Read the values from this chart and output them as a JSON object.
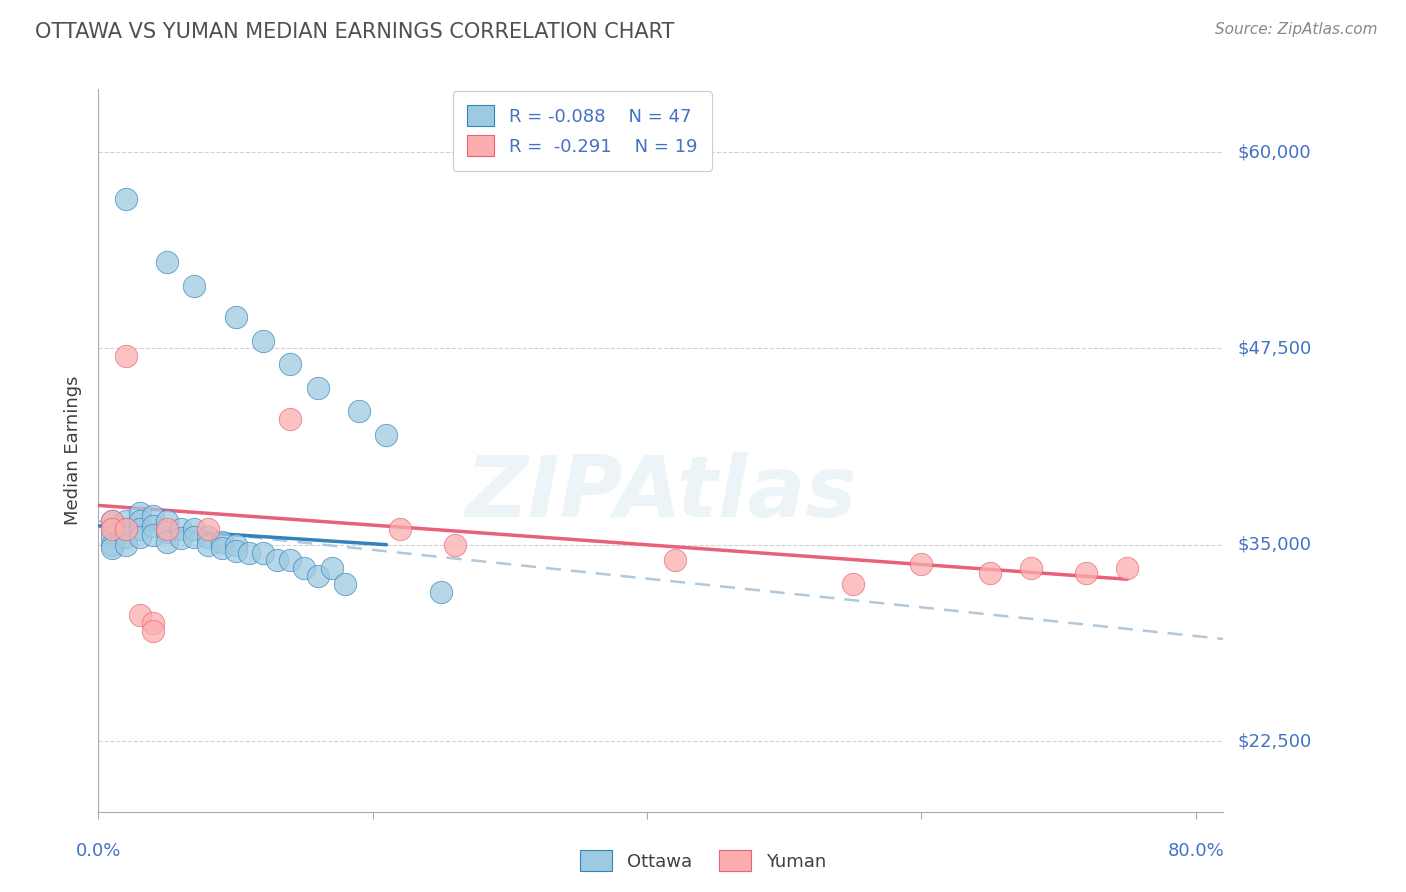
{
  "title": "OTTAWA VS YUMAN MEDIAN EARNINGS CORRELATION CHART",
  "source": "Source: ZipAtlas.com",
  "ylabel": "Median Earnings",
  "yticks": [
    22500,
    35000,
    47500,
    60000
  ],
  "ytick_labels": [
    "$22,500",
    "$35,000",
    "$47,500",
    "$60,000"
  ],
  "ylim": [
    18000,
    64000
  ],
  "xlim": [
    0.0,
    0.82
  ],
  "watermark": "ZIPAtlas",
  "ottawa_color": "#9ecae1",
  "yuman_color": "#fcaeae",
  "ottawa_line_color": "#3182bd",
  "yuman_line_color": "#e8607a",
  "dashed_color": "#b0c8dc",
  "background_color": "#ffffff",
  "grid_color": "#cccccc",
  "title_color": "#505050",
  "axis_label_color": "#4472c4",
  "ottawa_x": [
    0.01,
    0.01,
    0.01,
    0.01,
    0.01,
    0.02,
    0.02,
    0.02,
    0.02,
    0.03,
    0.03,
    0.03,
    0.03,
    0.04,
    0.04,
    0.04,
    0.05,
    0.05,
    0.05,
    0.06,
    0.06,
    0.07,
    0.07,
    0.08,
    0.08,
    0.09,
    0.09,
    0.1,
    0.1,
    0.11,
    0.12,
    0.13,
    0.14,
    0.15,
    0.16,
    0.17,
    0.18,
    0.02,
    0.05,
    0.07,
    0.1,
    0.12,
    0.14,
    0.16,
    0.19,
    0.21,
    0.25
  ],
  "ottawa_y": [
    36500,
    36000,
    35500,
    35000,
    34800,
    36500,
    36000,
    35500,
    35000,
    37000,
    36500,
    36000,
    35500,
    36800,
    36200,
    35600,
    36500,
    35800,
    35200,
    36000,
    35400,
    36000,
    35500,
    35500,
    35000,
    35200,
    34800,
    35000,
    34600,
    34500,
    34500,
    34000,
    34000,
    33500,
    33000,
    33500,
    32500,
    57000,
    53000,
    51500,
    49500,
    48000,
    46500,
    45000,
    43500,
    42000,
    32000
  ],
  "yuman_x": [
    0.01,
    0.01,
    0.02,
    0.02,
    0.03,
    0.04,
    0.04,
    0.05,
    0.08,
    0.14,
    0.22,
    0.26,
    0.42,
    0.55,
    0.6,
    0.65,
    0.68,
    0.72,
    0.75
  ],
  "yuman_y": [
    36500,
    36000,
    47000,
    36000,
    30500,
    30000,
    29500,
    36000,
    36000,
    43000,
    36000,
    35000,
    34000,
    32500,
    33800,
    33200,
    33500,
    33200,
    33500
  ],
  "ottawa_trendline_x": [
    0.0,
    0.21
  ],
  "ottawa_trendline_y": [
    36200,
    35000
  ],
  "yuman_trendline_x": [
    0.0,
    0.75
  ],
  "yuman_trendline_y": [
    37500,
    32800
  ],
  "dashed_trendline_x": [
    0.0,
    0.82
  ],
  "dashed_trendline_y": [
    36500,
    29000
  ]
}
